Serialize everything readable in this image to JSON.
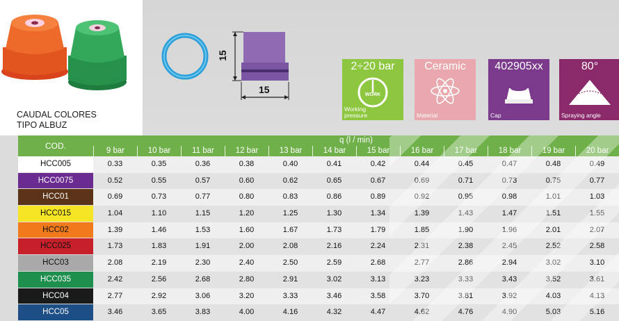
{
  "header": {
    "title_line1": "CAUDAL COLORES",
    "title_line2": "TIPO ALBUZ"
  },
  "dimensions": {
    "height": "15",
    "width": "15"
  },
  "specs": [
    {
      "value": "2÷20 bar",
      "icon_text": "WORK",
      "label": "Working pressure",
      "label_line1": "Working",
      "label_line2": "pressure",
      "color": "#8dc63f"
    },
    {
      "value": "Ceramic",
      "label": "Material",
      "color": "#e8a8ae"
    },
    {
      "value": "402905xx",
      "label": "Cap",
      "color": "#7b3a8c"
    },
    {
      "value": "80°",
      "label": "Spraying angle",
      "color": "#8a2a6b"
    }
  ],
  "table": {
    "cod_header": "COD.",
    "q_header": "q (l / min)",
    "pressures": [
      "9 bar",
      "10 bar",
      "11 bar",
      "12 bar",
      "13 bar",
      "14 bar",
      "15 bar",
      "16 bar",
      "17 bar",
      "18 bar",
      "19 bar",
      "20 bar"
    ],
    "rows": [
      {
        "code": "HCC005",
        "color": "#ffffff",
        "text_color": "#111111",
        "values": [
          "0.33",
          "0.35",
          "0.36",
          "0.38",
          "0.40",
          "0.41",
          "0.42",
          "0.44",
          "0.45",
          "0.47",
          "0.48",
          "0.49"
        ]
      },
      {
        "code": "HCC0075",
        "color": "#6b2c91",
        "text_color": "#ffffff",
        "values": [
          "0.52",
          "0.55",
          "0.57",
          "0.60",
          "0.62",
          "0.65",
          "0.67",
          "0.69",
          "0.71",
          "0.73",
          "0.75",
          "0.77"
        ]
      },
      {
        "code": "HCC01",
        "color": "#5b3318",
        "text_color": "#ffffff",
        "values": [
          "0.69",
          "0.73",
          "0.77",
          "0.80",
          "0.83",
          "0.86",
          "0.89",
          "0.92",
          "0.95",
          "0.98",
          "1.01",
          "1.03"
        ]
      },
      {
        "code": "HCC015",
        "color": "#f5e524",
        "text_color": "#111111",
        "values": [
          "1.04",
          "1.10",
          "1.15",
          "1.20",
          "1.25",
          "1.30",
          "1.34",
          "1.39",
          "1.43",
          "1.47",
          "1.51",
          "1.55"
        ]
      },
      {
        "code": "HCC02",
        "color": "#f07a1c",
        "text_color": "#111111",
        "values": [
          "1.39",
          "1.46",
          "1.53",
          "1.60",
          "1.67",
          "1.73",
          "1.79",
          "1.85",
          "1.90",
          "1.96",
          "2.01",
          "2.07"
        ]
      },
      {
        "code": "HCC025",
        "color": "#c8202a",
        "text_color": "#111111",
        "values": [
          "1.73",
          "1.83",
          "1.91",
          "2.00",
          "2.08",
          "2.16",
          "2.24",
          "2.31",
          "2.38",
          "2.45",
          "2.52",
          "2.58"
        ]
      },
      {
        "code": "HCC03",
        "color": "#a9a9a9",
        "text_color": "#111111",
        "values": [
          "2.08",
          "2.19",
          "2.30",
          "2.40",
          "2.50",
          "2.59",
          "2.68",
          "2.77",
          "2.86",
          "2.94",
          "3.02",
          "3.10"
        ]
      },
      {
        "code": "HCC035",
        "color": "#1f8f4e",
        "text_color": "#ffffff",
        "values": [
          "2.42",
          "2.56",
          "2.68",
          "2.80",
          "2.91",
          "3.02",
          "3.13",
          "3.23",
          "3.33",
          "3.43",
          "3.52",
          "3.61"
        ]
      },
      {
        "code": "HCC04",
        "color": "#1a1a1a",
        "text_color": "#ffffff",
        "values": [
          "2.77",
          "2.92",
          "3.06",
          "3.20",
          "3.33",
          "3.46",
          "3.58",
          "3.70",
          "3.81",
          "3.92",
          "4.03",
          "4.13"
        ]
      },
      {
        "code": "HCC05",
        "color": "#1d4e86",
        "text_color": "#ffffff",
        "values": [
          "3.46",
          "3.65",
          "3.83",
          "4.00",
          "4.16",
          "4.32",
          "4.47",
          "4.62",
          "4.76",
          "4.90",
          "5.03",
          "5.16"
        ]
      }
    ]
  }
}
